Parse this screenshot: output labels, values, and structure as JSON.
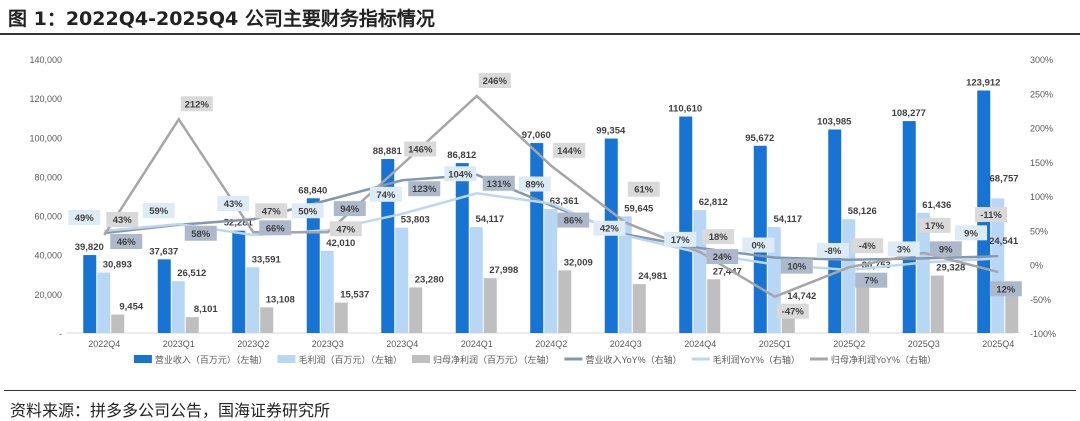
{
  "title": "图 1：2022Q4-2025Q4 公司主要财务指标情况",
  "source": "资料来源：拼多多公司公告，国海证券研究所",
  "chart_data": {
    "type": "bar+line",
    "title": "图 1：2022Q4-2025Q4 公司主要财务指标情况",
    "categories": [
      "2022Q4",
      "2023Q1",
      "2023Q2",
      "2023Q3",
      "2023Q4",
      "2024Q1",
      "2024Q2",
      "2024Q3",
      "2024Q4",
      "2025Q1",
      "2025Q2",
      "2025Q3",
      "2025Q4"
    ],
    "left_axis": {
      "ylim": [
        0,
        140000
      ],
      "ticks": [
        "-",
        "20,000",
        "40,000",
        "60,000",
        "80,000",
        "100,000",
        "120,000",
        "140,000"
      ]
    },
    "right_axis": {
      "ylim": [
        -100,
        300
      ],
      "ticks": [
        "-100%",
        "-50%",
        "0%",
        "50%",
        "100%",
        "150%",
        "200%",
        "250%",
        "300%"
      ]
    },
    "bar_series": [
      {
        "name": "营业收入（百万元）（左轴）",
        "color": "#1874d4",
        "values": [
          39820,
          37637,
          52281,
          68840,
          88881,
          86812,
          97060,
          99354,
          110610,
          95672,
          103985,
          108277,
          123912
        ],
        "labels": [
          "39,820",
          "37,637",
          "52,281",
          "68,840",
          "88,881",
          "86,812",
          "97,060",
          "99,354",
          "110,610",
          "95,672",
          "103,985",
          "108,277",
          "123,912"
        ]
      },
      {
        "name": "毛利润（百万元）（左轴）",
        "color": "#b7d7f5",
        "values": [
          30893,
          26512,
          33591,
          42010,
          53803,
          54117,
          63361,
          59645,
          62812,
          54117,
          58126,
          61436,
          68757
        ],
        "labels": [
          "30,893",
          "26,512",
          "33,591",
          "42,010",
          "53,803",
          "54,117",
          "63,361",
          "59,645",
          "62,812",
          "54,117",
          "58,126",
          "61,436",
          "68,757"
        ]
      },
      {
        "name": "归母净利润（百万元）（左轴）",
        "color": "#bfbfbf",
        "values": [
          9454,
          8101,
          13108,
          15537,
          23280,
          27998,
          32009,
          24981,
          27447,
          14742,
          30753,
          29328,
          24541
        ],
        "labels": [
          "9,454",
          "8,101",
          "13,108",
          "15,537",
          "23,280",
          "27,998",
          "32,009",
          "24,981",
          "27,447",
          "14,742",
          "30,753",
          "29,328",
          "24,541"
        ]
      }
    ],
    "line_series": [
      {
        "name": "营业收入YoY%（右轴）",
        "color": "#8497b0",
        "values": [
          46,
          58,
          66,
          94,
          123,
          131,
          86,
          44,
          24,
          10,
          7,
          9,
          12
        ],
        "labels": [
          "46%",
          "58%",
          "66%",
          "94%",
          "123%",
          "131%",
          "86%",
          "",
          "24%",
          "10%",
          "7%",
          "9%",
          "12%"
        ]
      },
      {
        "name": "毛利润YoY%（右轴）",
        "color": "#bdd7ee",
        "values": [
          49,
          59,
          43,
          50,
          74,
          104,
          89,
          42,
          17,
          0,
          -8,
          3,
          9
        ],
        "labels": [
          "49%",
          "59%",
          "43%",
          "50%",
          "74%",
          "104%",
          "89%",
          "42%",
          "17%",
          "0%",
          "-8%",
          "3%",
          "9%"
        ]
      },
      {
        "name": "归母净利润YoY%（右轴）",
        "color": "#a6a6a6",
        "values": [
          43,
          212,
          47,
          47,
          146,
          246,
          144,
          61,
          18,
          -47,
          -4,
          17,
          -11
        ],
        "labels": [
          "43%",
          "212%",
          "47%",
          "47%",
          "146%",
          "246%",
          "144%",
          "61%",
          "18%",
          "-47%",
          "-4%",
          "17%",
          "-11%"
        ]
      }
    ],
    "legend_position": "bottom",
    "grid": false
  }
}
